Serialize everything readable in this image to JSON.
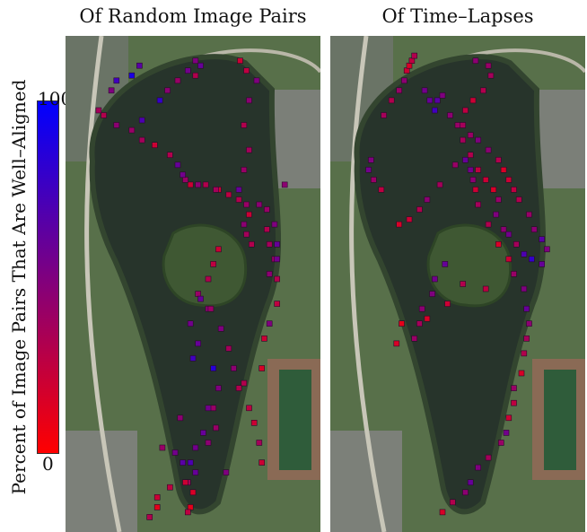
{
  "chart_data": [
    {
      "type": "scatter",
      "title": "Of Random Image Pairs",
      "colorbar": {
        "label": "Percent of Image Pairs That Are Well–Aligned",
        "min": 0,
        "max": 100,
        "min_label": "0",
        "max_label": "100",
        "colors": [
          "#ff0000",
          "#7f007f",
          "#0000ff"
        ]
      },
      "x": [
        0.685,
        0.71,
        0.75,
        0.72,
        0.7,
        0.72,
        0.7,
        0.68,
        0.76,
        0.79,
        0.8,
        0.82,
        0.83,
        0.83,
        0.8,
        0.78,
        0.77,
        0.7,
        0.58,
        0.45,
        0.54,
        0.51,
        0.46,
        0.63,
        0.48,
        0.41,
        0.36,
        0.36,
        0.33,
        0.38,
        0.43,
        0.49,
        0.51,
        0.56,
        0.59,
        0.56,
        0.6,
        0.58,
        0.5,
        0.52,
        0.49,
        0.56,
        0.52,
        0.56,
        0.58,
        0.6,
        0.53,
        0.57,
        0.61,
        0.64,
        0.66,
        0.68,
        0.72,
        0.74,
        0.76,
        0.77,
        0.8,
        0.83,
        0.83,
        0.82,
        0.79,
        0.86,
        0.73,
        0.71,
        0.7,
        0.72,
        0.71,
        0.68,
        0.64,
        0.6,
        0.59,
        0.55,
        0.52,
        0.49,
        0.47,
        0.46,
        0.44,
        0.41,
        0.35,
        0.3,
        0.26,
        0.2,
        0.15,
        0.13,
        0.18,
        0.2,
        0.26,
        0.29,
        0.3,
        0.37,
        0.4,
        0.44,
        0.48,
        0.53,
        0.51,
        0.51,
        0.47,
        0.5,
        0.49,
        0.48
      ],
      "y": [
        0.05,
        0.07,
        0.09,
        0.13,
        0.18,
        0.23,
        0.27,
        0.31,
        0.34,
        0.39,
        0.42,
        0.45,
        0.49,
        0.54,
        0.58,
        0.61,
        0.67,
        0.7,
        0.75,
        0.77,
        0.8,
        0.83,
        0.86,
        0.88,
        0.9,
        0.91,
        0.93,
        0.95,
        0.97,
        0.83,
        0.84,
        0.86,
        0.88,
        0.82,
        0.79,
        0.75,
        0.71,
        0.67,
        0.65,
        0.62,
        0.58,
        0.55,
        0.52,
        0.49,
        0.46,
        0.43,
        0.53,
        0.55,
        0.59,
        0.63,
        0.67,
        0.71,
        0.75,
        0.78,
        0.82,
        0.86,
        0.48,
        0.45,
        0.42,
        0.38,
        0.35,
        0.3,
        0.42,
        0.4,
        0.38,
        0.36,
        0.34,
        0.33,
        0.32,
        0.31,
        0.31,
        0.3,
        0.3,
        0.3,
        0.29,
        0.28,
        0.26,
        0.24,
        0.22,
        0.21,
        0.19,
        0.18,
        0.16,
        0.15,
        0.11,
        0.09,
        0.08,
        0.06,
        0.17,
        0.13,
        0.11,
        0.09,
        0.07,
        0.06,
        0.05,
        0.08,
        0.9,
        0.92,
        0.95,
        0.96
      ],
      "values": [
        20,
        25,
        50,
        45,
        30,
        35,
        40,
        60,
        45,
        30,
        35,
        40,
        30,
        25,
        50,
        20,
        15,
        30,
        40,
        45,
        60,
        55,
        65,
        50,
        35,
        25,
        20,
        10,
        30,
        40,
        55,
        70,
        60,
        45,
        40,
        55,
        50,
        85,
        75,
        60,
        55,
        45,
        40,
        30,
        25,
        20,
        60,
        40,
        50,
        35,
        45,
        30,
        25,
        20,
        35,
        20,
        45,
        55,
        60,
        50,
        40,
        45,
        30,
        35,
        45,
        20,
        40,
        30,
        25,
        20,
        35,
        30,
        45,
        20,
        40,
        55,
        60,
        30,
        20,
        35,
        40,
        45,
        30,
        35,
        50,
        75,
        90,
        65,
        70,
        80,
        45,
        40,
        55,
        60,
        50,
        30,
        20,
        15,
        10,
        25
      ]
    },
    {
      "type": "scatter",
      "title": "Of Time–Lapses",
      "x": [
        0.44,
        0.48,
        0.53,
        0.55,
        0.58,
        0.62,
        0.67,
        0.69,
        0.7,
        0.72,
        0.72,
        0.75,
        0.76,
        0.77,
        0.78,
        0.77,
        0.76,
        0.72,
        0.7,
        0.66,
        0.62,
        0.58,
        0.57,
        0.56,
        0.55,
        0.53,
        0.49,
        0.43,
        0.38,
        0.35,
        0.31,
        0.27,
        0.2,
        0.17,
        0.15,
        0.16,
        0.21,
        0.24,
        0.27,
        0.29,
        0.3,
        0.31,
        0.32,
        0.33,
        0.37,
        0.39,
        0.41,
        0.42,
        0.44,
        0.47,
        0.5,
        0.52,
        0.55,
        0.58,
        0.61,
        0.64,
        0.66,
        0.65,
        0.68,
        0.7,
        0.73,
        0.76,
        0.79,
        0.83,
        0.85,
        0.83,
        0.8,
        0.78,
        0.74,
        0.72,
        0.7,
        0.68,
        0.66,
        0.62,
        0.58,
        0.55,
        0.52,
        0.53,
        0.56,
        0.6,
        0.63,
        0.62,
        0.57,
        0.45,
        0.41,
        0.4,
        0.36,
        0.35,
        0.33,
        0.52,
        0.61,
        0.46,
        0.38,
        0.28,
        0.26
      ],
      "y": [
        0.96,
        0.94,
        0.92,
        0.9,
        0.87,
        0.85,
        0.82,
        0.8,
        0.77,
        0.74,
        0.71,
        0.68,
        0.64,
        0.61,
        0.58,
        0.55,
        0.51,
        0.48,
        0.45,
        0.42,
        0.38,
        0.34,
        0.31,
        0.29,
        0.27,
        0.25,
        0.26,
        0.3,
        0.33,
        0.35,
        0.37,
        0.38,
        0.31,
        0.29,
        0.27,
        0.25,
        0.16,
        0.13,
        0.11,
        0.09,
        0.07,
        0.06,
        0.05,
        0.04,
        0.11,
        0.13,
        0.15,
        0.13,
        0.12,
        0.16,
        0.18,
        0.21,
        0.24,
        0.27,
        0.29,
        0.31,
        0.33,
        0.36,
        0.39,
        0.4,
        0.42,
        0.44,
        0.45,
        0.46,
        0.43,
        0.41,
        0.39,
        0.36,
        0.33,
        0.31,
        0.29,
        0.27,
        0.25,
        0.23,
        0.21,
        0.2,
        0.18,
        0.15,
        0.13,
        0.11,
        0.08,
        0.06,
        0.05,
        0.46,
        0.49,
        0.52,
        0.55,
        0.58,
        0.61,
        0.5,
        0.51,
        0.54,
        0.57,
        0.58,
        0.62
      ],
      "values": [
        15,
        30,
        45,
        60,
        50,
        35,
        40,
        55,
        20,
        25,
        40,
        15,
        30,
        35,
        45,
        60,
        50,
        40,
        20,
        15,
        30,
        35,
        20,
        45,
        55,
        60,
        40,
        35,
        45,
        30,
        20,
        15,
        25,
        40,
        55,
        50,
        35,
        30,
        40,
        45,
        20,
        15,
        25,
        30,
        55,
        60,
        75,
        65,
        50,
        45,
        40,
        35,
        30,
        25,
        20,
        15,
        40,
        50,
        45,
        55,
        35,
        70,
        80,
        60,
        50,
        65,
        45,
        40,
        30,
        25,
        20,
        15,
        30,
        45,
        50,
        40,
        35,
        25,
        20,
        30,
        35,
        40,
        45,
        60,
        55,
        50,
        45,
        35,
        40,
        30,
        25,
        20,
        15,
        10,
        15
      ]
    }
  ]
}
